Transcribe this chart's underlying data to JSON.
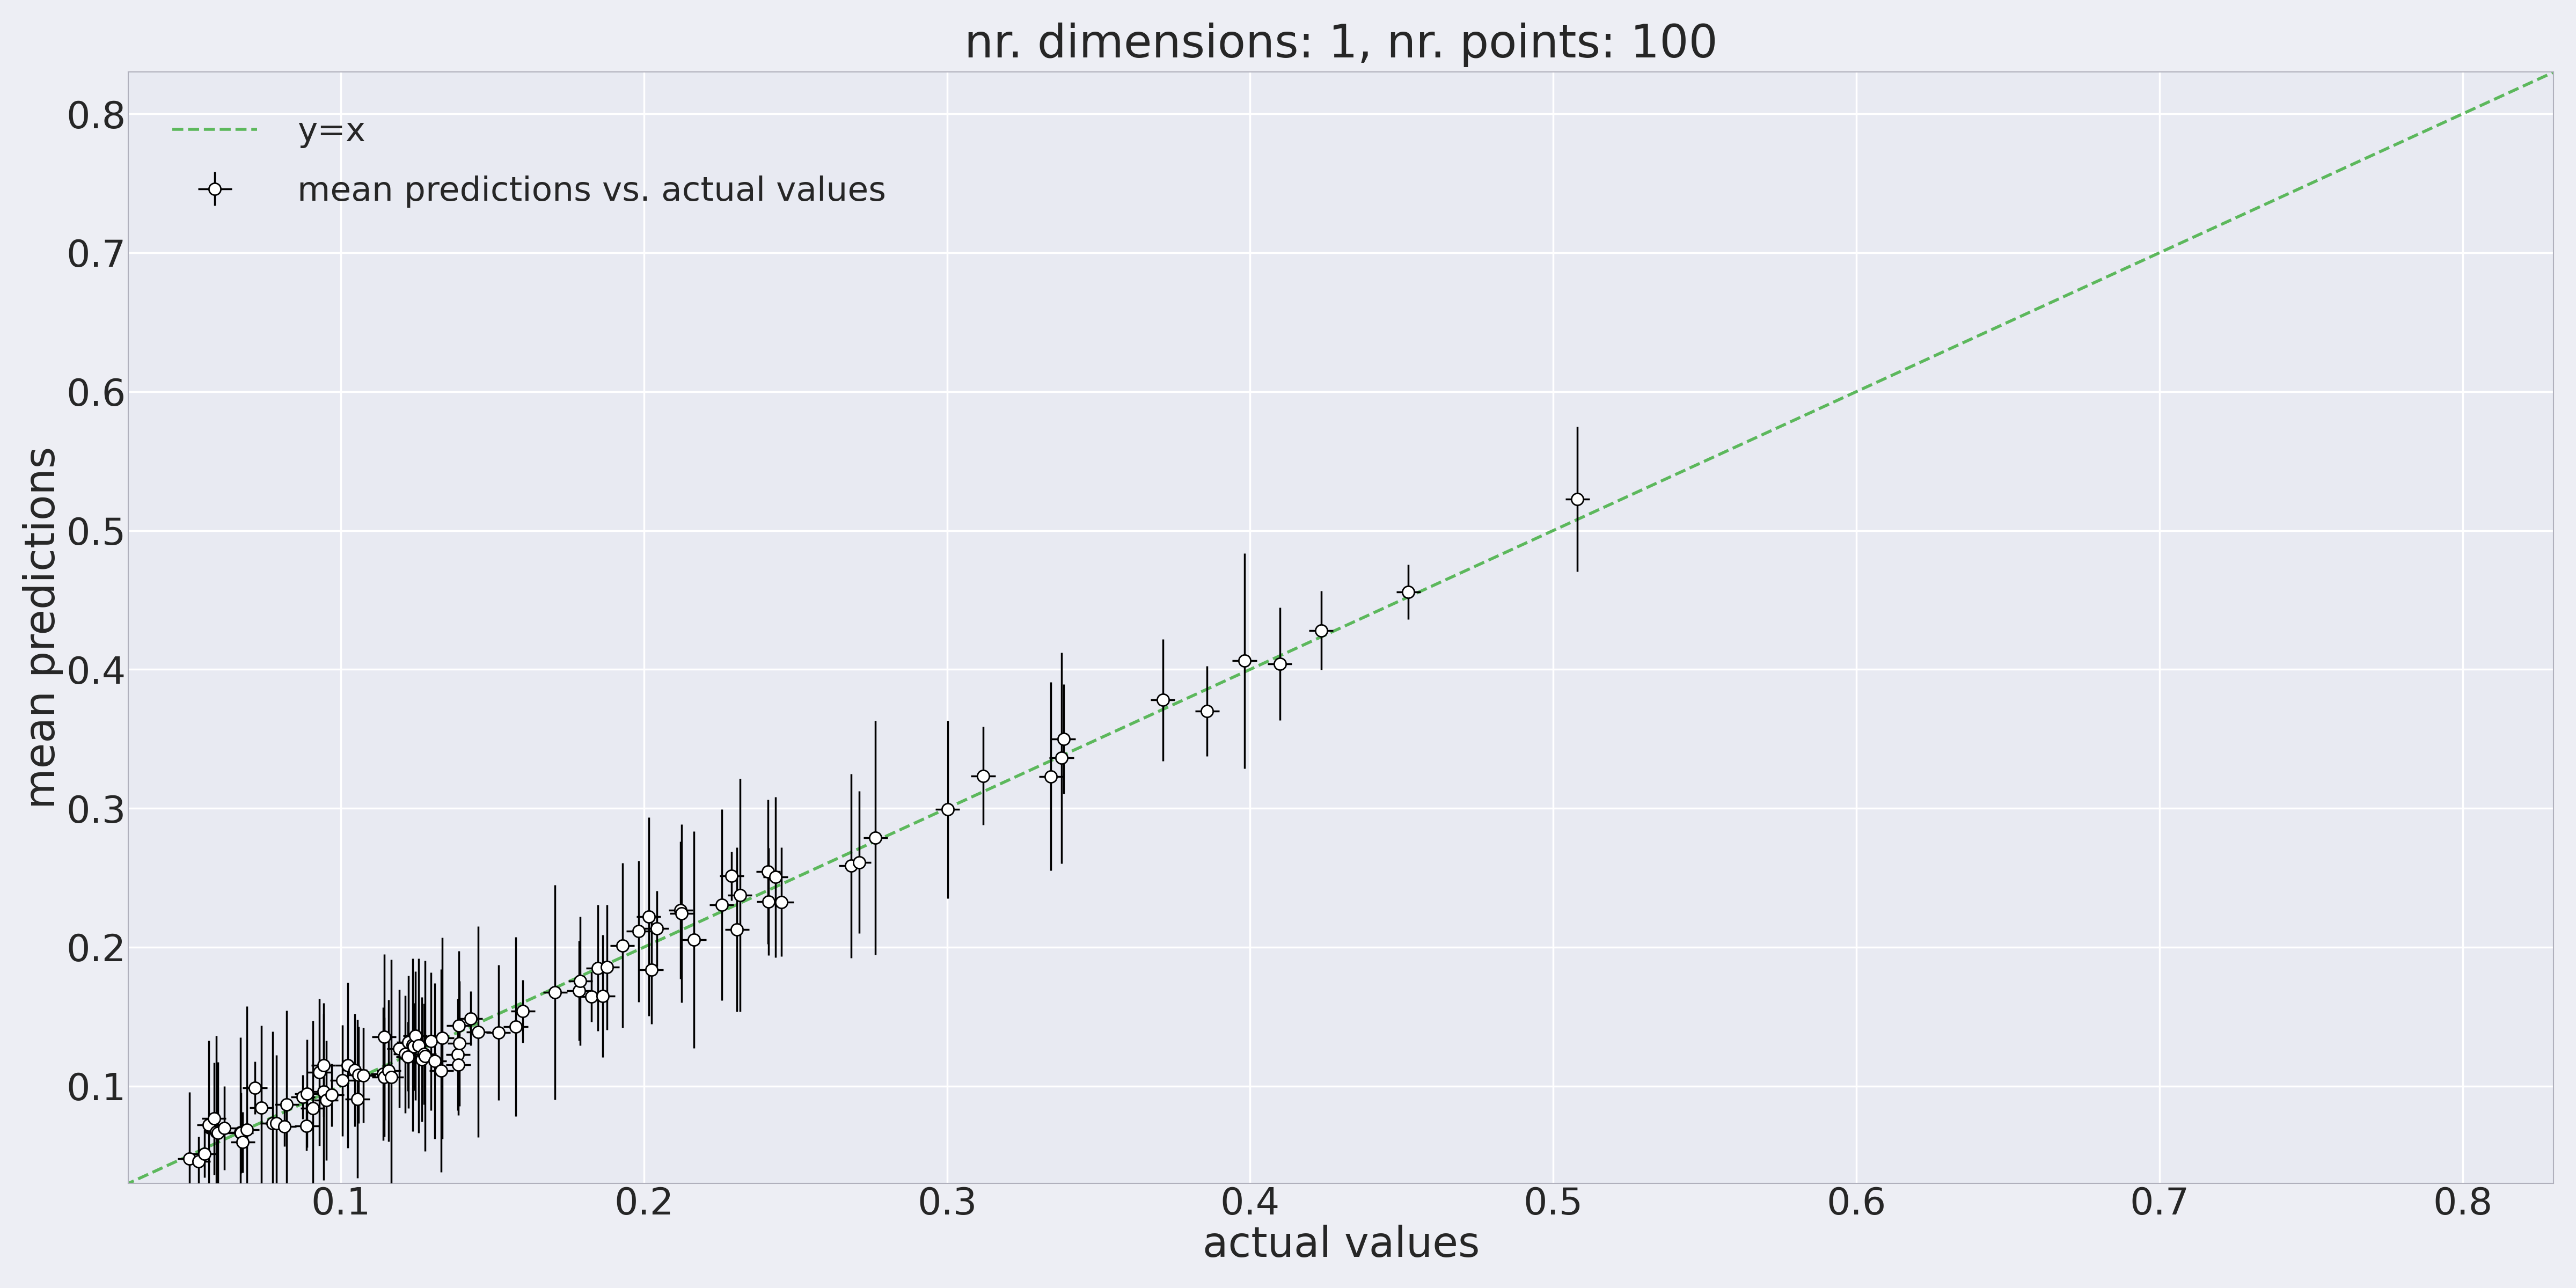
{
  "title": "nr. dimensions: 1, nr. points: 100",
  "xlabel": "actual values",
  "ylabel": "mean predictions",
  "legend_line": "y=x",
  "legend_points": "mean predictions vs. actual values",
  "xlim": [
    0.03,
    0.83
  ],
  "ylim": [
    0.03,
    0.83
  ],
  "xticks": [
    0.1,
    0.2,
    0.3,
    0.4,
    0.5,
    0.6,
    0.7,
    0.8
  ],
  "yticks": [
    0.1,
    0.2,
    0.3,
    0.4,
    0.5,
    0.6,
    0.7,
    0.8
  ],
  "background_color": "#e8eaf2",
  "fig_background_color": "#edeef4",
  "line_color": "#5cb85c",
  "marker_face_color": "white",
  "marker_edge_color": "black",
  "error_color": "black",
  "title_fontsize": 22,
  "label_fontsize": 20,
  "tick_fontsize": 18,
  "legend_fontsize": 18
}
